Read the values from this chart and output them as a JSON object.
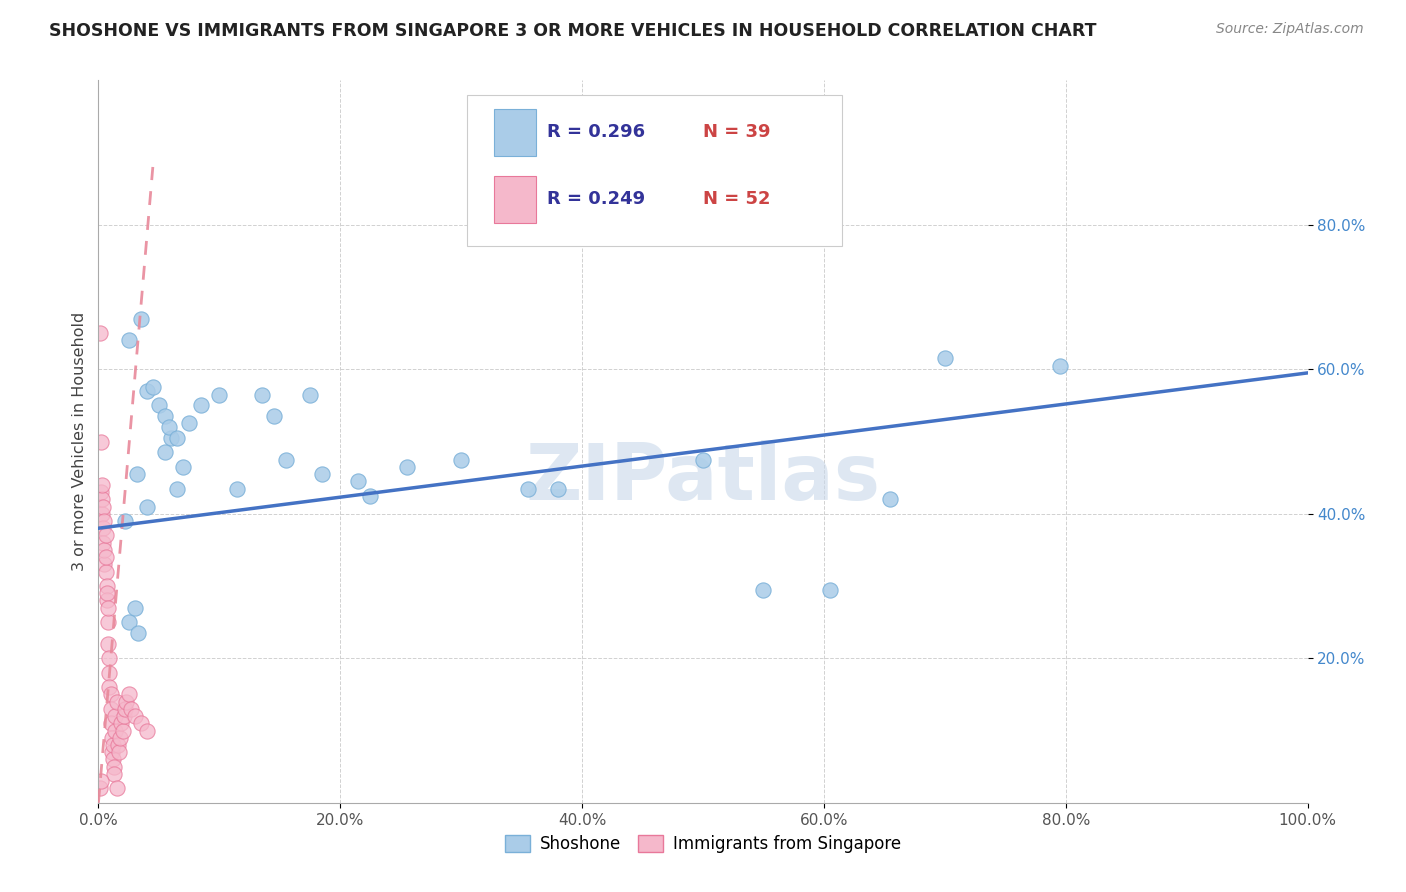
{
  "title": "SHOSHONE VS IMMIGRANTS FROM SINGAPORE 3 OR MORE VEHICLES IN HOUSEHOLD CORRELATION CHART",
  "source": "Source: ZipAtlas.com",
  "ylabel": "3 or more Vehicles in Household",
  "shoshone_color": "#aacce8",
  "shoshone_edge": "#7ab0d8",
  "singapore_color": "#f5b8cb",
  "singapore_edge": "#e8789a",
  "trendline_blue": "#4472c4",
  "trendline_pink": "#e8899a",
  "watermark": "ZIPatlas",
  "watermark_color": "#c8d8ea",
  "grid_color": "#cccccc",
  "title_color": "#222222",
  "source_color": "#888888",
  "ylabel_color": "#444444",
  "ytick_color": "#4488cc",
  "xtick_color": "#555555",
  "legend_edge": "#cccccc",
  "shoshone_x": [
    0.022,
    0.035,
    0.04,
    0.05,
    0.055,
    0.06,
    0.065,
    0.07,
    0.025,
    0.03,
    0.032,
    0.045,
    0.055,
    0.058,
    0.065,
    0.075,
    0.085,
    0.1,
    0.115,
    0.135,
    0.145,
    0.155,
    0.175,
    0.185,
    0.215,
    0.225,
    0.255,
    0.3,
    0.355,
    0.38,
    0.5,
    0.55,
    0.605,
    0.655,
    0.7,
    0.795,
    0.025,
    0.033,
    0.04
  ],
  "shoshone_y": [
    0.39,
    0.67,
    0.57,
    0.55,
    0.535,
    0.505,
    0.435,
    0.465,
    0.25,
    0.27,
    0.455,
    0.575,
    0.485,
    0.52,
    0.505,
    0.525,
    0.55,
    0.565,
    0.435,
    0.565,
    0.535,
    0.475,
    0.565,
    0.455,
    0.445,
    0.425,
    0.465,
    0.475,
    0.435,
    0.435,
    0.475,
    0.295,
    0.295,
    0.42,
    0.615,
    0.605,
    0.64,
    0.235,
    0.41
  ],
  "singapore_x": [
    0.001,
    0.002,
    0.002,
    0.003,
    0.003,
    0.003,
    0.004,
    0.004,
    0.004,
    0.005,
    0.005,
    0.005,
    0.006,
    0.006,
    0.006,
    0.007,
    0.007,
    0.007,
    0.008,
    0.008,
    0.008,
    0.009,
    0.009,
    0.009,
    0.01,
    0.01,
    0.01,
    0.011,
    0.011,
    0.012,
    0.012,
    0.013,
    0.013,
    0.014,
    0.014,
    0.015,
    0.015,
    0.016,
    0.017,
    0.018,
    0.019,
    0.02,
    0.021,
    0.022,
    0.023,
    0.025,
    0.027,
    0.03,
    0.035,
    0.04,
    0.001,
    0.002
  ],
  "singapore_y": [
    0.65,
    0.5,
    0.43,
    0.4,
    0.42,
    0.44,
    0.38,
    0.41,
    0.36,
    0.39,
    0.33,
    0.35,
    0.37,
    0.32,
    0.34,
    0.3,
    0.28,
    0.29,
    0.25,
    0.27,
    0.22,
    0.2,
    0.18,
    0.16,
    0.15,
    0.13,
    0.11,
    0.09,
    0.07,
    0.06,
    0.08,
    0.05,
    0.04,
    0.1,
    0.12,
    0.14,
    0.02,
    0.08,
    0.07,
    0.09,
    0.11,
    0.1,
    0.12,
    0.13,
    0.14,
    0.15,
    0.13,
    0.12,
    0.11,
    0.1,
    0.02,
    0.03
  ],
  "blue_trend_x": [
    0.0,
    1.0
  ],
  "blue_trend_y": [
    0.38,
    0.595
  ],
  "pink_trend_x": [
    0.0,
    0.045
  ],
  "pink_trend_y": [
    0.0,
    0.88
  ],
  "xlim": [
    0.0,
    1.0
  ],
  "ylim": [
    0.0,
    1.0
  ],
  "xticks": [
    0.0,
    0.2,
    0.4,
    0.6,
    0.8,
    1.0
  ],
  "yticks": [
    0.2,
    0.4,
    0.6,
    0.8
  ],
  "xticklabels": [
    "0.0%",
    "20.0%",
    "40.0%",
    "60.0%",
    "80.0%",
    "100.0%"
  ],
  "yticklabels": [
    "20.0%",
    "40.0%",
    "60.0%",
    "80.0%"
  ]
}
